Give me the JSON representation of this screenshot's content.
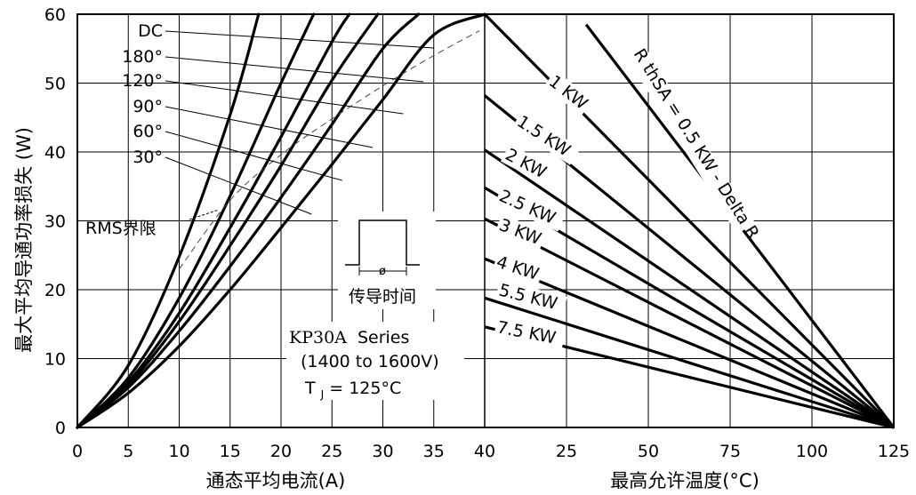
{
  "chart_data": [
    {
      "type": "line",
      "panel": "left",
      "title": "",
      "xlabel": "通态平均电流(A)",
      "ylabel": "最大平均导通功率损失 (W)",
      "xlim": [
        0,
        40
      ],
      "ylim": [
        0,
        60
      ],
      "x_ticks": [
        "0",
        "5",
        "10",
        "15",
        "20",
        "25",
        "30",
        "35",
        "40"
      ],
      "y_ticks": [
        "0",
        "10",
        "20",
        "30",
        "40",
        "50",
        "60"
      ],
      "grid": true,
      "series": [
        {
          "name": "DC",
          "x": [
            0,
            5,
            10,
            15,
            20,
            25,
            30,
            35,
            40
          ],
          "y": [
            0,
            5.0,
            11.8,
            20.0,
            29.0,
            38.2,
            47.6,
            57.0,
            60.0
          ]
        },
        {
          "name": "180°",
          "x": [
            0,
            5,
            10,
            15,
            20,
            25,
            30,
            33.5
          ],
          "y": [
            0,
            5.8,
            14.0,
            23.4,
            33.4,
            44.0,
            55.0,
            60.0
          ]
        },
        {
          "name": "120°",
          "x": [
            0,
            5,
            10,
            15,
            20,
            25,
            29.5
          ],
          "y": [
            0,
            6.2,
            15.4,
            26.4,
            38.0,
            50.4,
            60.0
          ]
        },
        {
          "name": "90°",
          "x": [
            0,
            5,
            10,
            15,
            20,
            25,
            26.7
          ],
          "y": [
            0,
            6.6,
            16.6,
            29.0,
            42.2,
            56.0,
            60.0
          ]
        },
        {
          "name": "60°",
          "x": [
            0,
            5,
            10,
            15,
            20,
            23.2
          ],
          "y": [
            0,
            7.2,
            18.8,
            33.6,
            50.0,
            60.0
          ]
        },
        {
          "name": "30°",
          "x": [
            0,
            5,
            10,
            15,
            17.8
          ],
          "y": [
            0,
            9.0,
            24.8,
            45.4,
            60.0
          ]
        }
      ],
      "rms_limit": {
        "name": "RMS界限",
        "x": [
          10,
          15,
          20,
          25,
          30,
          35,
          39.5
        ],
        "y": [
          23.0,
          33.0,
          39.6,
          44.8,
          49.6,
          54.0,
          57.6
        ]
      },
      "annotations": [
        "传导时间",
        "KP30A Series",
        "(1400 to 1600V)",
        "TJ = 125°C"
      ]
    },
    {
      "type": "line",
      "panel": "right",
      "title": "",
      "xlabel": "最高允许温度(°C)",
      "ylabel": "",
      "xlim": [
        0,
        125
      ],
      "ylim": [
        0,
        60
      ],
      "x_ticks": [
        "25",
        "50",
        "75",
        "100",
        "125"
      ],
      "grid": true,
      "series": [
        {
          "name": "RthSA = 0.5 KW - Delta R",
          "x": [
            31,
            125
          ],
          "y": [
            58.5,
            0
          ]
        },
        {
          "name": "1 KW",
          "x": [
            0,
            125
          ],
          "y": [
            60.0,
            0
          ]
        },
        {
          "name": "1.5 KW",
          "x": [
            0,
            125
          ],
          "y": [
            48.2,
            0
          ]
        },
        {
          "name": "2 KW",
          "x": [
            0,
            125
          ],
          "y": [
            40.3,
            0
          ]
        },
        {
          "name": "2.5 KW",
          "x": [
            0,
            125
          ],
          "y": [
            34.8,
            0
          ]
        },
        {
          "name": "3 KW",
          "x": [
            0,
            125
          ],
          "y": [
            30.3,
            0
          ]
        },
        {
          "name": "4 KW",
          "x": [
            0,
            125
          ],
          "y": [
            24.5,
            0
          ]
        },
        {
          "name": "5.5 KW",
          "x": [
            0,
            125
          ],
          "y": [
            18.8,
            0
          ]
        },
        {
          "name": "7.5 KW",
          "x": [
            0,
            125
          ],
          "y": [
            14.6,
            0
          ]
        }
      ]
    }
  ],
  "texts": {
    "ylabel": "最大平均导通功率损失 (W)",
    "xlabel_left": "通态平均电流(A)",
    "xlabel_right": "最高允许温度(°C)",
    "rms": "RMS界限",
    "conduction": "传导时间",
    "phi": "ø",
    "series_name": "KP30A",
    "series_suffix": "Series",
    "voltage": "(1400 to 1600V)",
    "tj": "T",
    "tj_sub": "J",
    "tj_rest": " = 125°C",
    "rth_label": "R thSA = 0.5 KW - Delta R",
    "legend_left": [
      "DC",
      "180°",
      "120°",
      "90°",
      "60°",
      "30°"
    ],
    "legend_right": [
      "1 KW",
      "1.5 KW",
      "2 KW",
      "2.5 KW",
      "3 KW",
      "4 KW",
      "5.5 KW",
      "7.5 KW"
    ]
  }
}
